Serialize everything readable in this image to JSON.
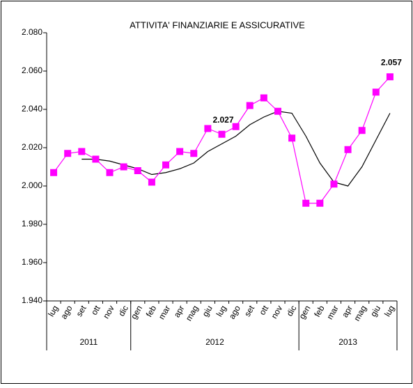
{
  "chart_data": {
    "type": "line",
    "title": "ATTIVITA' FINANZIARIE E ASSICURATIVE",
    "categories": [
      "lug",
      "ago",
      "set",
      "ott",
      "nov",
      "dic",
      "gen",
      "feb",
      "mar",
      "apr",
      "mag",
      "giu",
      "lug",
      "ago",
      "set",
      "ott",
      "nov",
      "dic",
      "gen",
      "feb",
      "mar",
      "apr",
      "mag",
      "giu",
      "lug"
    ],
    "groups": [
      {
        "label": "2011",
        "start": 0,
        "end": 5
      },
      {
        "label": "2012",
        "start": 6,
        "end": 17
      },
      {
        "label": "2013",
        "start": 18,
        "end": 24
      }
    ],
    "series": [
      {
        "color": "#ff00ff",
        "marker": "square",
        "values": [
          2007,
          2017,
          2018,
          2014,
          2007,
          2010,
          2008,
          2002,
          2011,
          2018,
          2017,
          2030,
          2027,
          2031,
          2042,
          2046,
          2039,
          2025,
          1991,
          1991,
          2001,
          2019,
          2029,
          2049,
          2057
        ],
        "value_labels": [
          null,
          null,
          null,
          null,
          null,
          null,
          null,
          null,
          null,
          null,
          null,
          null,
          "2.027",
          null,
          null,
          null,
          null,
          null,
          null,
          null,
          null,
          null,
          null,
          null,
          "2.057"
        ]
      },
      {
        "color": "#000000",
        "values": [
          null,
          null,
          2014,
          2014,
          2013,
          2011,
          2009,
          2006,
          2007,
          2009,
          2012,
          2018,
          2022,
          2026,
          2032,
          2036,
          2039,
          2038,
          2026,
          2012,
          2002,
          2000,
          2010,
          2024,
          2038
        ]
      }
    ],
    "ylim": [
      1940,
      2080
    ],
    "yticks": [
      {
        "value": 1940,
        "label": "1.940"
      },
      {
        "value": 1960,
        "label": "1.960"
      },
      {
        "value": 1980,
        "label": "1.980"
      },
      {
        "value": 2000,
        "label": "2.000"
      },
      {
        "value": 2020,
        "label": "2.020"
      },
      {
        "value": 2040,
        "label": "2.040"
      },
      {
        "value": 2060,
        "label": "2.060"
      },
      {
        "value": 2080,
        "label": "2.080"
      }
    ],
    "grid": false
  }
}
